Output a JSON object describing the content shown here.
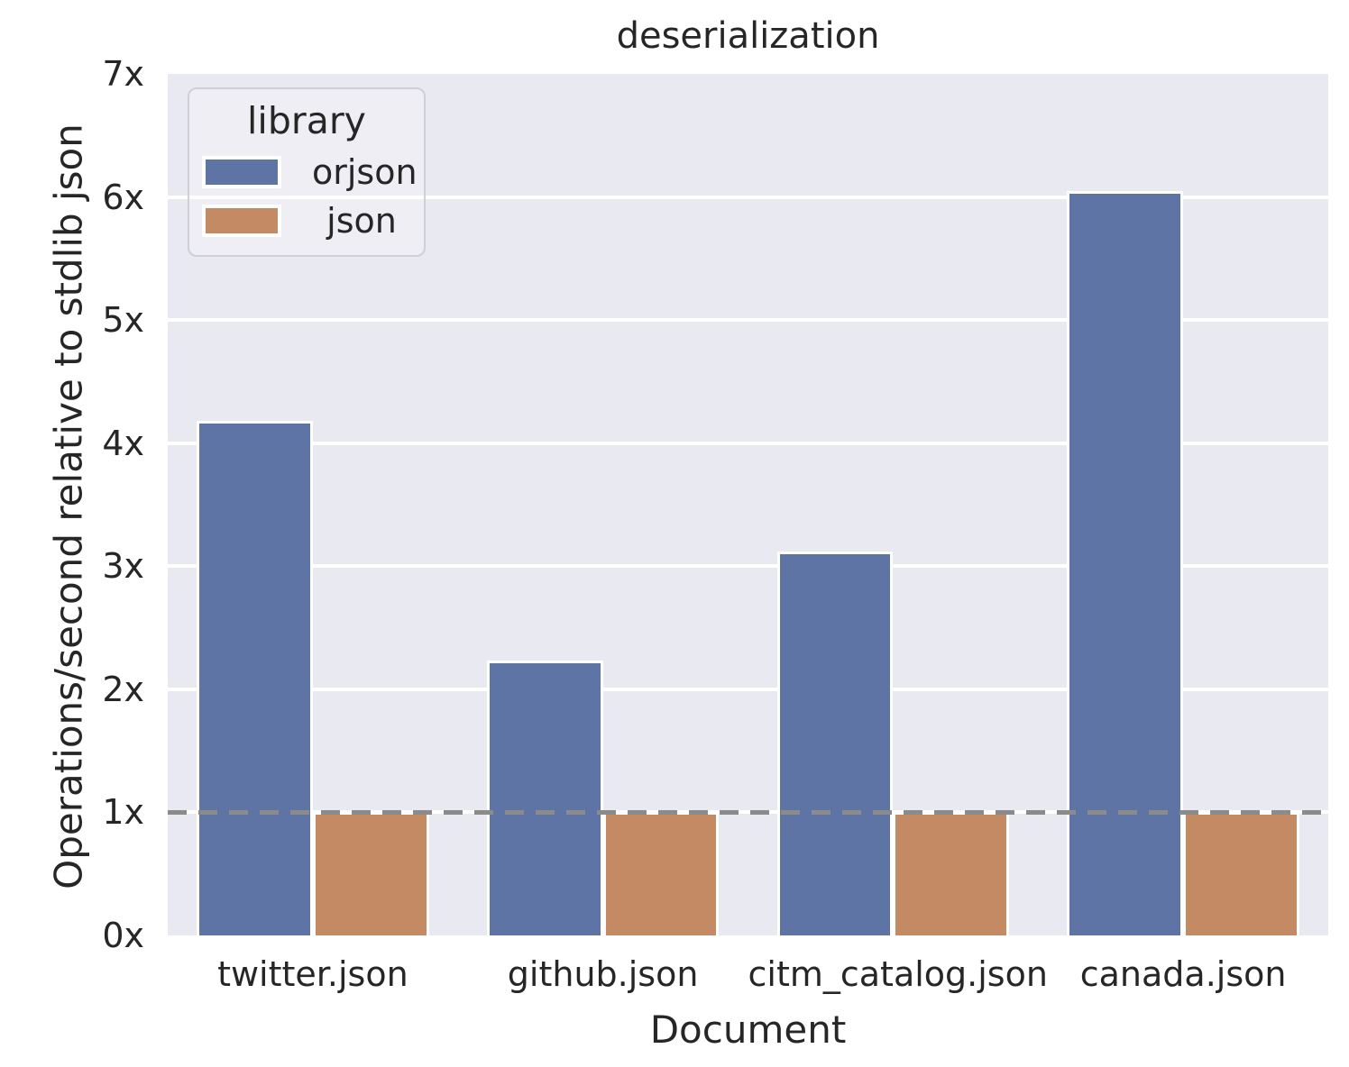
{
  "chart_data": {
    "type": "bar",
    "title": "deserialization",
    "xlabel": "Document",
    "ylabel": "Operations/second relative to stdlib json",
    "categories": [
      "twitter.json",
      "github.json",
      "citm_catalog.json",
      "canada.json"
    ],
    "series": [
      {
        "name": "orjson",
        "color": "#5d74a4",
        "values": [
          4.18,
          2.23,
          3.12,
          6.05
        ]
      },
      {
        "name": "json",
        "color": "#c48a64",
        "values": [
          1.0,
          1.0,
          1.0,
          1.0
        ]
      }
    ],
    "ylim": [
      0,
      7
    ],
    "yticks": [
      "0x",
      "1x",
      "2x",
      "3x",
      "4x",
      "5x",
      "6x",
      "7x"
    ],
    "grid": true,
    "gridline_color": "#ffffff",
    "plot_background": "#e9e9f1",
    "legend": {
      "title": "library",
      "position": "upper left",
      "entries": [
        "orjson",
        "json"
      ]
    },
    "reference_line": {
      "value": 1,
      "style": "dashed",
      "color": "#8b8b8b"
    }
  }
}
